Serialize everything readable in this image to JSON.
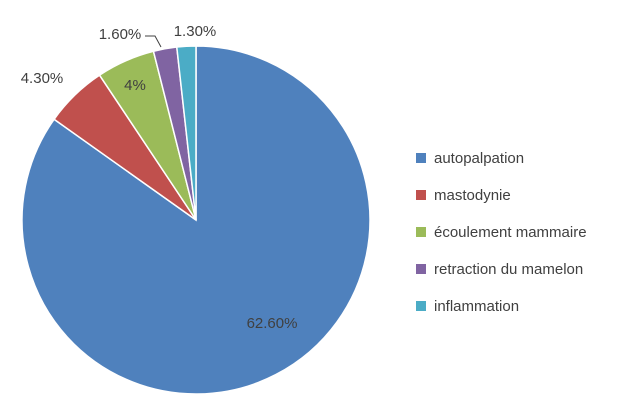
{
  "chart_data": {
    "type": "pie",
    "title": "",
    "categories": [
      "autopalpation",
      "mastodynie",
      "écoulement mammaire",
      "retraction du mamelon",
      "inflammation"
    ],
    "values": [
      62.6,
      4.3,
      4,
      1.6,
      1.3
    ],
    "labels": [
      "62.60%",
      "4.30%",
      "4%",
      "1.60%",
      "1.30%"
    ],
    "colors": [
      "#4F81BD",
      "#C0504D",
      "#9BBB59",
      "#8064A2",
      "#4BACC6"
    ],
    "legend_position": "right",
    "start_angle": "12 o'clock",
    "direction": "clockwise"
  }
}
